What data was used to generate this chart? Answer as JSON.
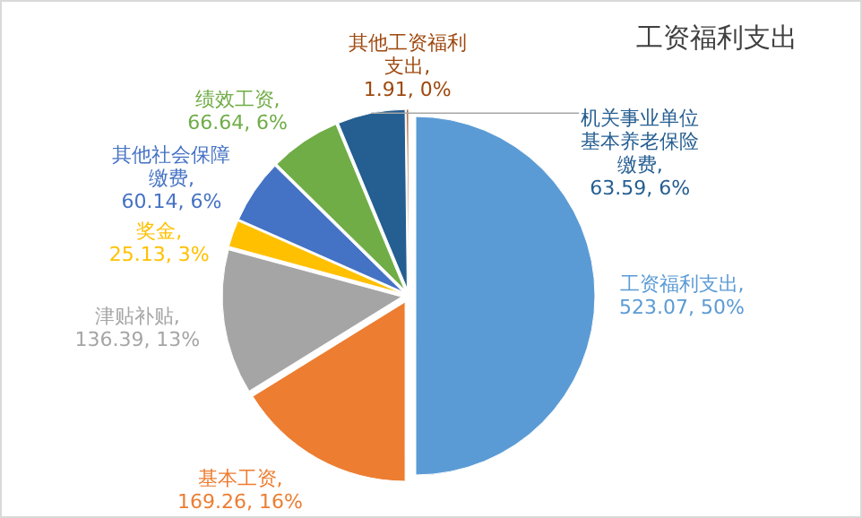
{
  "chart_data": {
    "type": "pie",
    "title": "工资福利支出",
    "categories": [
      "工资福利支出",
      "基本工资",
      "津贴补贴",
      "奖金",
      "其他社会保障缴费",
      "绩效工资",
      "机关事业单位基本养老保险缴费",
      "其他工资福利支出"
    ],
    "values": [
      523.07,
      169.26,
      136.39,
      25.13,
      60.14,
      66.64,
      63.59,
      1.91
    ],
    "colors": [
      "#5b9bd5",
      "#ed7d31",
      "#a5a5a5",
      "#ffc000",
      "#4472c4",
      "#70ad47",
      "#255e91",
      "#9e480e"
    ],
    "value_labels": [
      ", 523.07, 50%",
      ", 169.26, 16%",
      ", 136.39, 13%",
      ", 25.13, 3%",
      ", 60.14, 6%",
      ", 66.64, 6%",
      ", 63.59, 6%",
      ", 1.91, 0%"
    ]
  }
}
